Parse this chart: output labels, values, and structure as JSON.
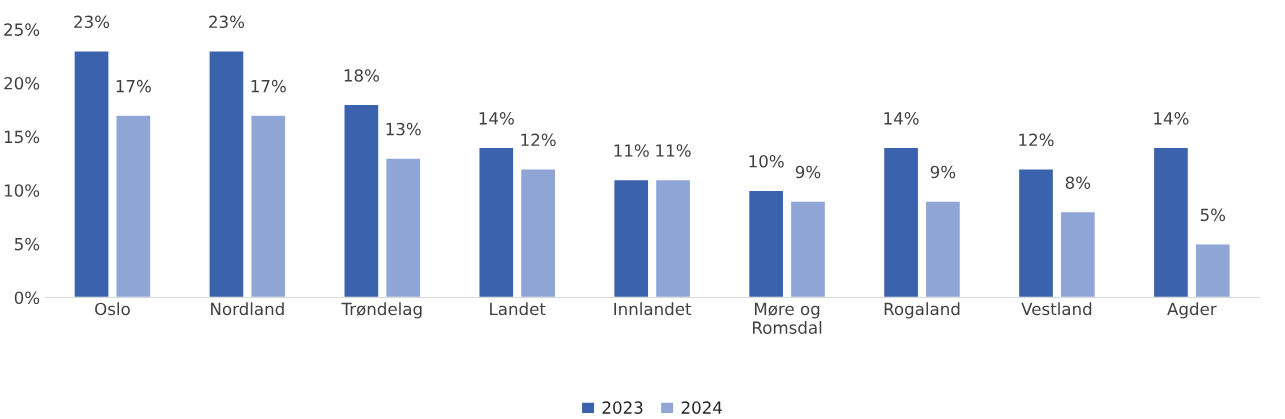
{
  "chart_data": {
    "type": "bar",
    "categories": [
      "Oslo",
      "Nordland",
      "Trøndelag",
      "Landet",
      "Innlandet",
      "Møre og\nRomsdal",
      "Rogaland",
      "Vestland",
      "Agder"
    ],
    "series": [
      {
        "name": "2023",
        "color": "#3a62ad",
        "values": [
          23,
          23,
          18,
          14,
          11,
          10,
          14,
          12,
          14
        ],
        "value_labels": [
          "23%",
          "23%",
          "18%",
          "14%",
          "11%",
          "10%",
          "14%",
          "12%",
          "14%"
        ]
      },
      {
        "name": "2024",
        "color": "#8fa5d6",
        "values": [
          17,
          17,
          13,
          12,
          11,
          9,
          9,
          8,
          5
        ],
        "value_labels": [
          "17%",
          "17%",
          "13%",
          "12%",
          "11%",
          "9%",
          "9%",
          "8%",
          "5%"
        ]
      }
    ],
    "ylim": [
      0,
      25
    ],
    "yticks": [
      {
        "value": 0,
        "label": "0%"
      },
      {
        "value": 5,
        "label": "5%"
      },
      {
        "value": 10,
        "label": "10%"
      },
      {
        "value": 15,
        "label": "15%"
      },
      {
        "value": 20,
        "label": "20%"
      },
      {
        "value": 25,
        "label": "25%"
      }
    ],
    "grid": false,
    "legend": "bottom"
  }
}
